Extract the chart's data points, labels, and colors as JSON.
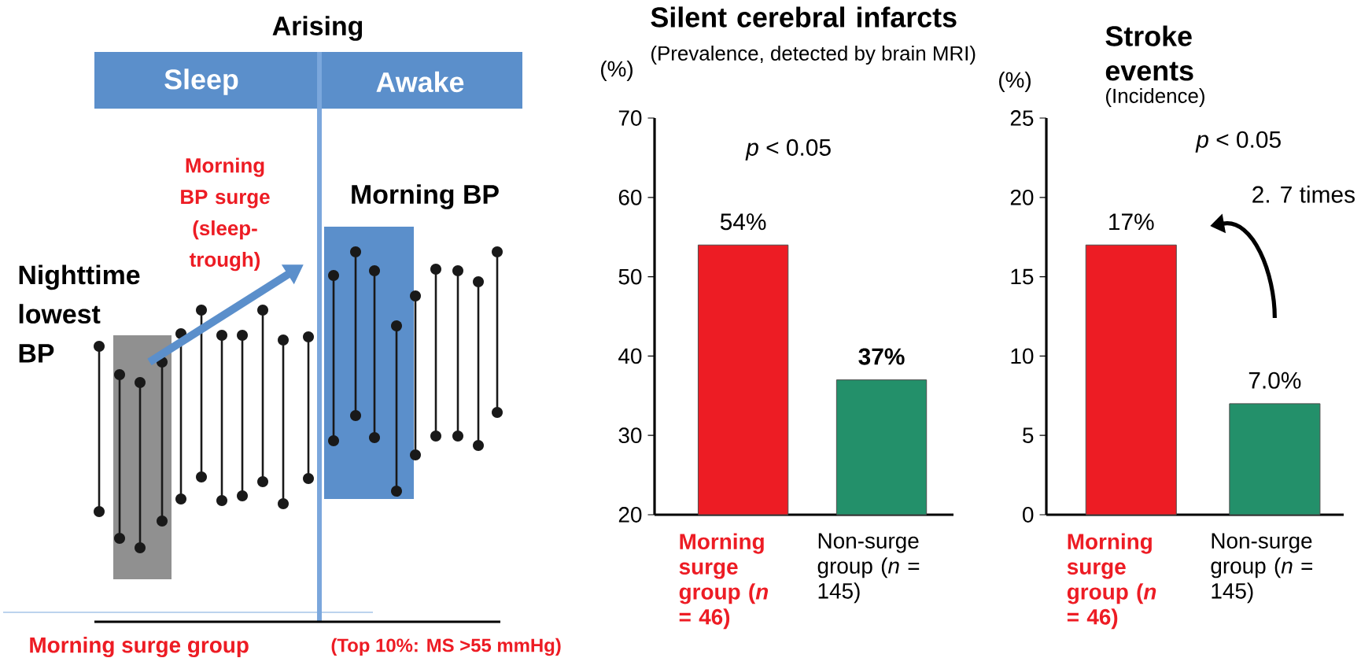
{
  "chart_data": [
    {
      "type": "other",
      "title": "Arising",
      "annotations": [
        "Sleep",
        "Awake",
        "Morning BP surge (sleep-trough)",
        "Morning BP",
        "Nighttime lowest BP",
        "Morning surge group",
        "(Top 10%: MS >55 mmHg)"
      ]
    },
    {
      "type": "bar",
      "title": "Silent cerebral infarcts",
      "subtitle": "(Prevalence, detected by brain MRI)",
      "ylabel": "(%)",
      "categories": [
        "Morning surge group (*n* = 46)",
        "Non-surge group (*n* = 145)"
      ],
      "values": [
        54,
        37
      ],
      "colors": [
        "#ed1c24",
        "#23906a"
      ],
      "value_labels": [
        "54%",
        "**37%**"
      ],
      "ylim": [
        20,
        70
      ],
      "yticks": [
        20,
        30,
        40,
        50,
        60,
        70
      ],
      "annotations": [
        "*p* < 0.05"
      ]
    },
    {
      "type": "bar",
      "title": "Stroke events",
      "subtitle": "(Incidence)",
      "ylabel": "(%)",
      "categories": [
        "Morning surge group (*n* = 46)",
        "Non-surge group (*n* = 145)"
      ],
      "values": [
        17,
        7.0
      ],
      "colors": [
        "#ed1c24",
        "#23906a"
      ],
      "value_labels": [
        "17%",
        "7.0%"
      ],
      "ylim": [
        0,
        25
      ],
      "yticks": [
        0,
        5,
        10,
        15,
        20,
        25
      ],
      "annotations": [
        "*p* < 0.05",
        "2. 7 times"
      ]
    }
  ]
}
